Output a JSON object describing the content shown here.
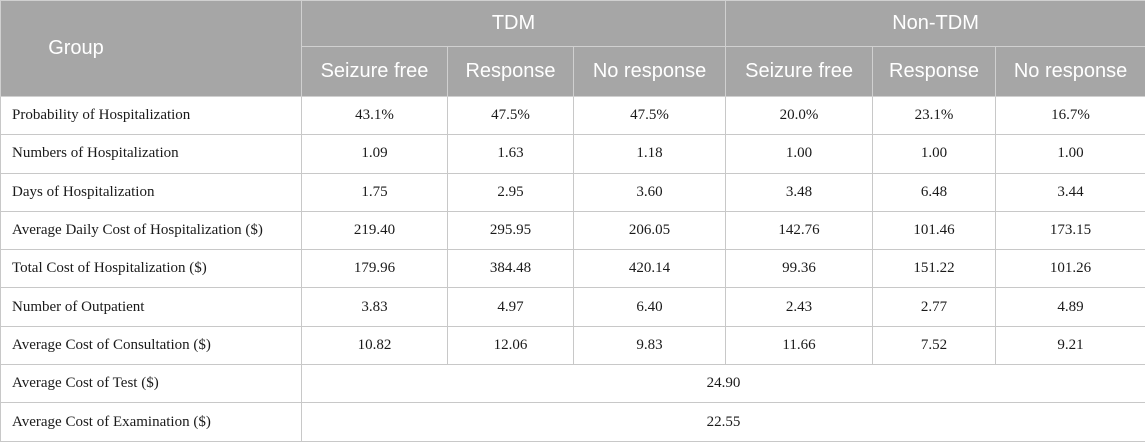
{
  "header": {
    "group_label": "Group",
    "tdm_label": "TDM",
    "non_tdm_label": "Non-TDM",
    "sub": [
      "Seizure free",
      "Response",
      "No response",
      "Seizure free",
      "Response",
      "No response"
    ]
  },
  "rows": [
    {
      "label": "Probability of Hospitalization",
      "values": [
        "43.1%",
        "47.5%",
        "47.5%",
        "20.0%",
        "23.1%",
        "16.7%"
      ]
    },
    {
      "label": "Numbers of Hospitalization",
      "values": [
        "1.09",
        "1.63",
        "1.18",
        "1.00",
        "1.00",
        "1.00"
      ]
    },
    {
      "label": "Days of Hospitalization",
      "values": [
        "1.75",
        "2.95",
        "3.60",
        "3.48",
        "6.48",
        "3.44"
      ]
    },
    {
      "label": "Average Daily Cost of Hospitalization ($)",
      "values": [
        "219.40",
        "295.95",
        "206.05",
        "142.76",
        "101.46",
        "173.15"
      ]
    },
    {
      "label": "Total Cost of Hospitalization ($)",
      "values": [
        "179.96",
        "384.48",
        "420.14",
        "99.36",
        "151.22",
        "101.26"
      ]
    },
    {
      "label": "Number of Outpatient",
      "values": [
        "3.83",
        "4.97",
        "6.40",
        "2.43",
        "2.77",
        "4.89"
      ]
    },
    {
      "label": "Average Cost of Consultation ($)",
      "values": [
        "10.82",
        "12.06",
        "9.83",
        "11.66",
        "7.52",
        "9.21"
      ]
    }
  ],
  "merged_rows": [
    {
      "label": "Average Cost of Test ($)",
      "value": "24.90"
    },
    {
      "label": "Average Cost of Examination ($)",
      "value": "22.55"
    }
  ]
}
